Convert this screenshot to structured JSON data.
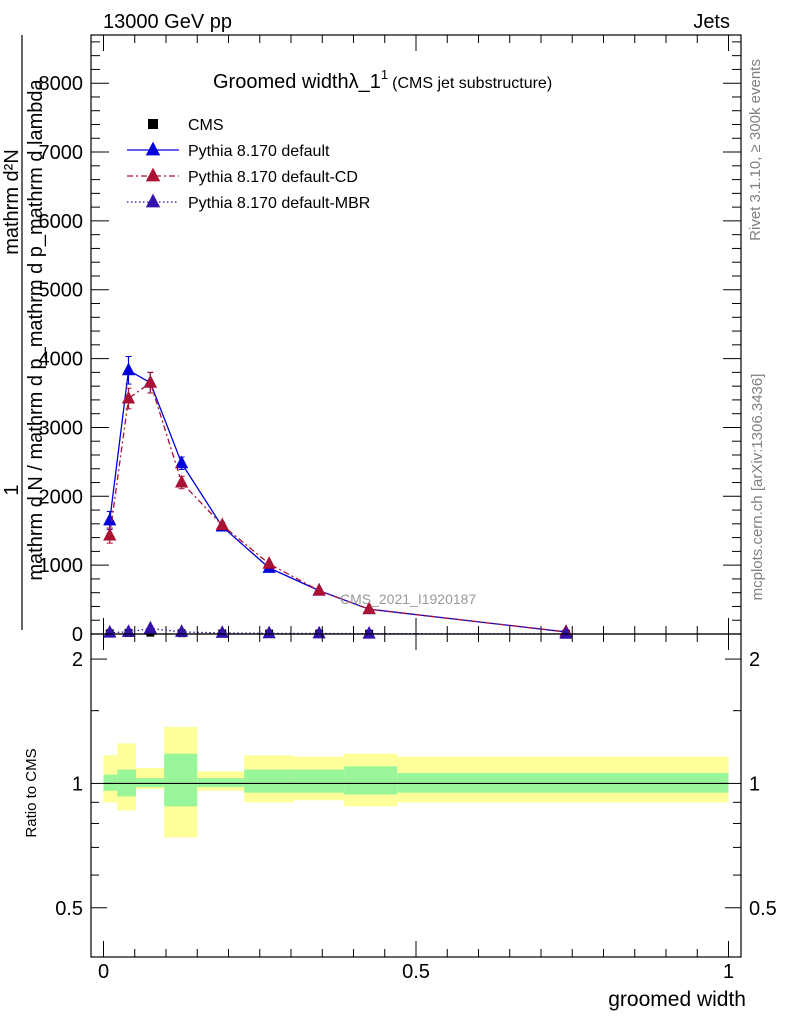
{
  "header": {
    "left": "13000 GeV pp",
    "right": "Jets"
  },
  "side_labels": {
    "rivet": "Rivet 3.1.10, ≥ 300k events",
    "source": "mcplots.cern.ch [arXiv:1306.3436]"
  },
  "chart_data": [
    {
      "type": "scatter",
      "title_main": "Groomed widthλ_1",
      "title_sup": "1",
      "title_sub": "(CMS jet substructure)",
      "ylabel_top": "1",
      "ylabel_frac": "mathrm d N / mathrm d p_mathrm d p_mathrm d lambda",
      "ylabel_num": "mathrm d²N",
      "watermark": "CMS_2021_I1920187",
      "xlim": [
        -0.02,
        1.02
      ],
      "ylim": [
        0,
        8700
      ],
      "y_ticks": [
        0,
        1000,
        2000,
        3000,
        4000,
        5000,
        6000,
        7000,
        8000
      ],
      "y_tick_labels": [
        "0",
        "1000",
        "2000",
        "3000",
        "4000",
        "5000",
        "6000",
        "7000",
        "8000"
      ],
      "legend_position": "top-left",
      "series": [
        {
          "name": "CMS",
          "color": "#000000",
          "marker": "square",
          "line": "none",
          "x": [
            0.01,
            0.04,
            0.075,
            0.125,
            0.19,
            0.265,
            0.345,
            0.425,
            0.74
          ],
          "y": [
            10,
            15,
            20,
            12,
            8,
            6,
            5,
            4,
            2
          ]
        },
        {
          "name": "Pythia 8.170 default",
          "color": "#0000dd",
          "marker": "triangle",
          "line": "solid",
          "x": [
            0.01,
            0.04,
            0.075,
            0.125,
            0.19,
            0.265,
            0.345,
            0.425,
            0.74
          ],
          "y": [
            1650,
            3830,
            3650,
            2480,
            1560,
            960,
            630,
            360,
            30
          ],
          "err": [
            130,
            200,
            150,
            90,
            40,
            30,
            20,
            15,
            5
          ]
        },
        {
          "name": "Pythia 8.170 default-CD",
          "color": "#aa1133",
          "marker": "triangle",
          "line": "dashdot",
          "x": [
            0.01,
            0.04,
            0.075,
            0.125,
            0.19,
            0.265,
            0.345,
            0.425,
            0.74
          ],
          "y": [
            1430,
            3420,
            3650,
            2200,
            1580,
            1020,
            630,
            360,
            30
          ],
          "err": [
            110,
            150,
            150,
            90,
            40,
            30,
            20,
            15,
            5
          ]
        },
        {
          "name": "Pythia 8.170 default-MBR",
          "color": "#3311aa",
          "marker": "triangle",
          "line": "dotted",
          "x": [
            0.01,
            0.04,
            0.075,
            0.125,
            0.19,
            0.265,
            0.345,
            0.425,
            0.74
          ],
          "y": [
            20,
            30,
            80,
            30,
            15,
            10,
            8,
            5,
            2
          ]
        }
      ]
    },
    {
      "type": "area",
      "ylabel": "Ratio to CMS",
      "xlabel": "groomed width",
      "xlim": [
        -0.02,
        1.02
      ],
      "ylim": [
        0.38,
        2.3
      ],
      "log_y": true,
      "y_ticks": [
        0.5,
        1,
        2
      ],
      "y_tick_labels": [
        "0.5",
        "1",
        "2"
      ],
      "x_ticks": [
        0,
        0.5,
        1
      ],
      "x_tick_labels": [
        "0",
        "0.5",
        "1"
      ],
      "reference_line": 1,
      "band_colors": {
        "inner": "#99f599",
        "outer": "#ffff99"
      },
      "bins": [
        {
          "lo": 0.0,
          "hi": 0.022,
          "inner": [
            0.96,
            1.05
          ],
          "outer": [
            0.9,
            1.17
          ]
        },
        {
          "lo": 0.022,
          "hi": 0.052,
          "inner": [
            0.93,
            1.08
          ],
          "outer": [
            0.86,
            1.25
          ]
        },
        {
          "lo": 0.052,
          "hi": 0.097,
          "inner": [
            0.98,
            1.03
          ],
          "outer": [
            0.97,
            1.09
          ]
        },
        {
          "lo": 0.097,
          "hi": 0.15,
          "inner": [
            0.88,
            1.18
          ],
          "outer": [
            0.74,
            1.37
          ]
        },
        {
          "lo": 0.15,
          "hi": 0.225,
          "inner": [
            0.98,
            1.03
          ],
          "outer": [
            0.96,
            1.07
          ]
        },
        {
          "lo": 0.225,
          "hi": 0.305,
          "inner": [
            0.95,
            1.08
          ],
          "outer": [
            0.9,
            1.17
          ]
        },
        {
          "lo": 0.305,
          "hi": 0.385,
          "inner": [
            0.95,
            1.08
          ],
          "outer": [
            0.91,
            1.16
          ]
        },
        {
          "lo": 0.385,
          "hi": 0.47,
          "inner": [
            0.94,
            1.1
          ],
          "outer": [
            0.88,
            1.18
          ]
        },
        {
          "lo": 0.47,
          "hi": 1.0,
          "inner": [
            0.95,
            1.06
          ],
          "outer": [
            0.9,
            1.16
          ]
        }
      ]
    }
  ]
}
